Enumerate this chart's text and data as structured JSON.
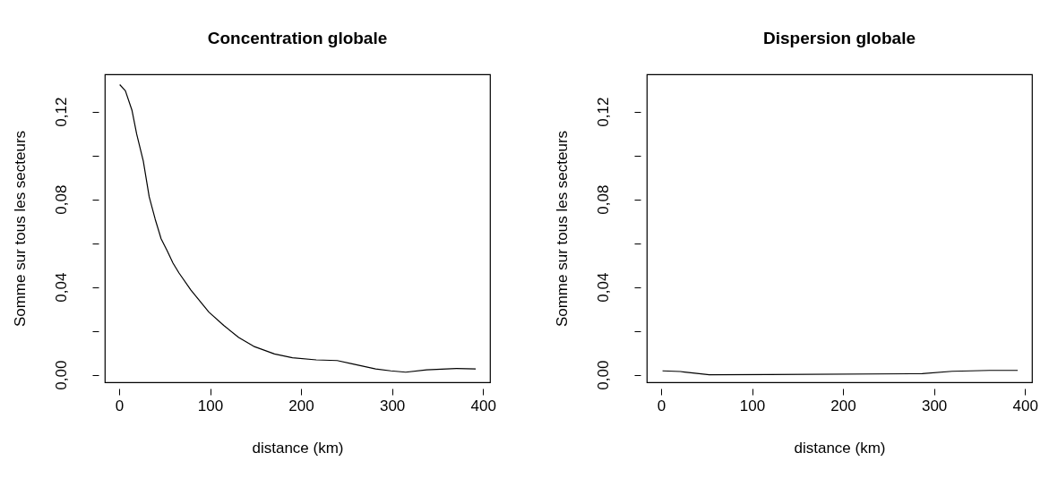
{
  "chart_data": [
    {
      "type": "line",
      "title": "Concentration globale",
      "xlabel": "distance (km)",
      "ylabel": "Somme sur tous les secteurs",
      "xlim": [
        -15.7,
        407.7
      ],
      "ylim": [
        -0.0034,
        0.137
      ],
      "xticks": [
        0,
        100,
        200,
        300,
        400
      ],
      "yticks": [
        {
          "value": 0,
          "label": "0,00"
        },
        {
          "value": 0.04,
          "label": "0,04"
        },
        {
          "value": 0.08,
          "label": "0,08"
        },
        {
          "value": 0.12,
          "label": "0,12"
        },
        {
          "value": 0.02,
          "label": null
        },
        {
          "value": 0.06,
          "label": null
        },
        {
          "value": 0.1,
          "label": null
        }
      ],
      "series": [
        {
          "color": "#000000",
          "x": [
            0.7,
            6.9,
            14.1,
            19.3,
            26.6,
            33.1,
            39.7,
            46.2,
            52.8,
            59.3,
            65.9,
            79,
            98.7,
            115,
            131.5,
            147.9,
            170.8,
            190.5,
            216.7,
            239.7,
            256,
            282,
            298.7,
            315,
            338,
            370.8,
            392
          ],
          "values": [
            0.1323,
            0.1295,
            0.1207,
            0.1098,
            0.0975,
            0.0811,
            0.0709,
            0.062,
            0.0566,
            0.0509,
            0.0464,
            0.0386,
            0.0286,
            0.0225,
            0.017,
            0.013,
            0.0095,
            0.0078,
            0.0068,
            0.0065,
            0.005,
            0.0027,
            0.0018,
            0.0012,
            0.0023,
            0.0029,
            0.0027
          ]
        }
      ]
    },
    {
      "type": "line",
      "title": "Dispersion globale",
      "xlabel": "distance (km)",
      "ylabel": "Somme sur tous les secteurs",
      "xlim": [
        -15.7,
        407.7
      ],
      "ylim": [
        -0.0034,
        0.137
      ],
      "xticks": [
        0,
        100,
        200,
        300,
        400
      ],
      "yticks": [
        {
          "value": 0,
          "label": "0,00"
        },
        {
          "value": 0.04,
          "label": "0,04"
        },
        {
          "value": 0.08,
          "label": "0,08"
        },
        {
          "value": 0.12,
          "label": "0,12"
        },
        {
          "value": 0.02,
          "label": null
        },
        {
          "value": 0.06,
          "label": null
        },
        {
          "value": 0.1,
          "label": null
        }
      ],
      "series": [
        {
          "color": "#000000",
          "x": [
            1.6,
            21.3,
            35,
            53,
            118.6,
            287,
            320,
            361,
            392
          ],
          "values": [
            0.0018,
            0.0015,
            0.0008,
            0,
            0.0001,
            0.0005,
            0.0016,
            0.002,
            0.002
          ]
        }
      ]
    }
  ]
}
